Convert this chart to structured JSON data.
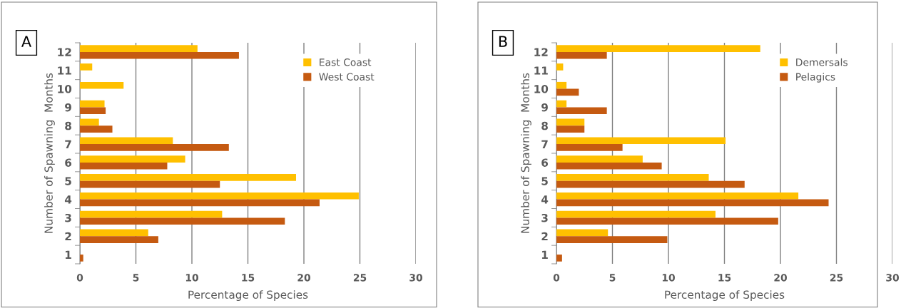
{
  "chart_data": [
    {
      "type": "bar",
      "orientation": "horizontal",
      "categories": [
        "12",
        "11",
        "10",
        "9",
        "8",
        "7",
        "6",
        "5",
        "4",
        "3",
        "2",
        "1"
      ],
      "xlabel": "Percentage of Species",
      "ylabel": "Number of Spawning  Months",
      "xlim": [
        0,
        30
      ],
      "xticks": [
        0,
        5,
        10,
        15,
        20,
        25,
        30
      ],
      "grid": "x",
      "legend": "top right",
      "annotations": [
        "A"
      ],
      "series": [
        {
          "name": "East Coast",
          "color": "#ffc000",
          "values": [
            10.5,
            1.1,
            3.9,
            2.2,
            1.7,
            8.3,
            9.4,
            19.3,
            24.9,
            12.7,
            6.1,
            0
          ]
        },
        {
          "name": "West Coast",
          "color": "#c55a11",
          "values": [
            14.2,
            0,
            0,
            2.3,
            2.9,
            13.3,
            7.8,
            12.5,
            21.4,
            18.3,
            7.0,
            0.3
          ]
        }
      ]
    },
    {
      "type": "bar",
      "orientation": "horizontal",
      "categories": [
        "12",
        "11",
        "10",
        "9",
        "8",
        "7",
        "6",
        "5",
        "4",
        "3",
        "2",
        "1"
      ],
      "xlabel": "Percentage of Species",
      "ylabel": "Number of Spawning  Months",
      "xlim": [
        0,
        30
      ],
      "xticks": [
        0,
        5,
        10,
        15,
        20,
        25,
        30
      ],
      "grid": "x",
      "legend": "top right",
      "annotations": [
        "B"
      ],
      "series": [
        {
          "name": "Demersals",
          "color": "#ffc000",
          "values": [
            18.2,
            0.6,
            0.9,
            0.9,
            2.5,
            15.1,
            7.7,
            13.6,
            21.6,
            14.2,
            4.6,
            0
          ]
        },
        {
          "name": "Pelagics",
          "color": "#c55a11",
          "values": [
            4.5,
            0,
            2.0,
            4.5,
            2.5,
            5.9,
            9.4,
            16.8,
            24.3,
            19.8,
            9.9,
            0.5
          ]
        }
      ]
    }
  ]
}
